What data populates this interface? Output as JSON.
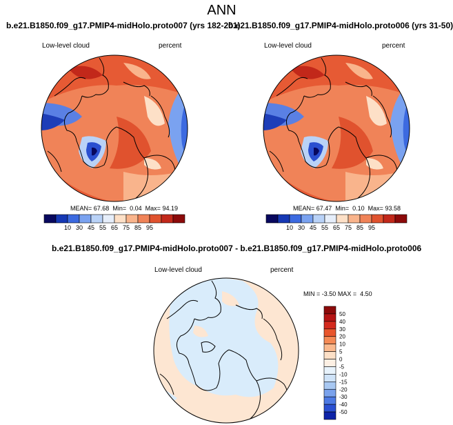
{
  "figure": {
    "title": "ANN"
  },
  "colors": {
    "coastline": "#000000",
    "ocean_deep_blue": "#2a4fd0",
    "diff_light_blue": "#d9ecfb",
    "diff_light_orange": "#fde6d2"
  },
  "chart_data": [
    {
      "type": "heatmap",
      "projection": "north-polar-stereographic",
      "title": "b.e21.B1850.f09_g17.PMIP4-midHolo.proto007 (yrs 182-201)",
      "variable": "Low-level cloud",
      "units": "percent",
      "stats": {
        "mean": "67.68",
        "min": "0.04",
        "max": "94.19"
      },
      "stats_labels": {
        "mean": "MEAN=",
        "min": "Min=",
        "max": "Max="
      },
      "colorbar": {
        "orientation": "horizontal",
        "ticks": [
          "10",
          "30",
          "45",
          "55",
          "65",
          "75",
          "85",
          "95"
        ],
        "colors": [
          "#08085e",
          "#1638b4",
          "#3c6ae0",
          "#7aa2f0",
          "#b9d2f7",
          "#e6eefa",
          "#fde0c7",
          "#f9b48c",
          "#f08358",
          "#e0522e",
          "#c2281a",
          "#8c0a0a"
        ]
      }
    },
    {
      "type": "heatmap",
      "projection": "north-polar-stereographic",
      "title": "b.e21.B1850.f09_g17.PMIP4-midHolo.proto006 (yrs 31-50)",
      "variable": "Low-level cloud",
      "units": "percent",
      "stats": {
        "mean": "67.47",
        "min": "0.10",
        "max": "93.58"
      },
      "stats_labels": {
        "mean": "MEAN=",
        "min": "Min=",
        "max": "Max="
      },
      "colorbar": {
        "orientation": "horizontal",
        "ticks": [
          "10",
          "30",
          "45",
          "55",
          "65",
          "75",
          "85",
          "95"
        ],
        "colors": [
          "#08085e",
          "#1638b4",
          "#3c6ae0",
          "#7aa2f0",
          "#b9d2f7",
          "#e6eefa",
          "#fde0c7",
          "#f9b48c",
          "#f08358",
          "#e0522e",
          "#c2281a",
          "#8c0a0a"
        ]
      }
    },
    {
      "type": "heatmap",
      "projection": "north-polar-stereographic",
      "title": "b.e21.B1850.f09_g17.PMIP4-midHolo.proto007 - b.e21.B1850.f09_g17.PMIP4-midHolo.proto006",
      "variable": "Low-level cloud",
      "units": "percent",
      "stats": {
        "min": "-3.50",
        "max": "4.50"
      },
      "stats_labels": {
        "min": "MIN =",
        "max": "MAX ="
      },
      "colorbar": {
        "orientation": "vertical",
        "ticks": [
          "50",
          "40",
          "30",
          "20",
          "10",
          "5",
          "0",
          "-5",
          "-10",
          "-15",
          "-20",
          "-30",
          "-40",
          "-50"
        ],
        "colors": [
          "#8c0a0a",
          "#b51414",
          "#d42a1e",
          "#e8552c",
          "#f58a55",
          "#fab98e",
          "#fde0c7",
          "#fdf0e4",
          "#e8f3fc",
          "#cfe3f8",
          "#a8c8f2",
          "#7aa2ec",
          "#4d7ae4",
          "#2a50d2",
          "#0d23a8"
        ]
      }
    }
  ]
}
